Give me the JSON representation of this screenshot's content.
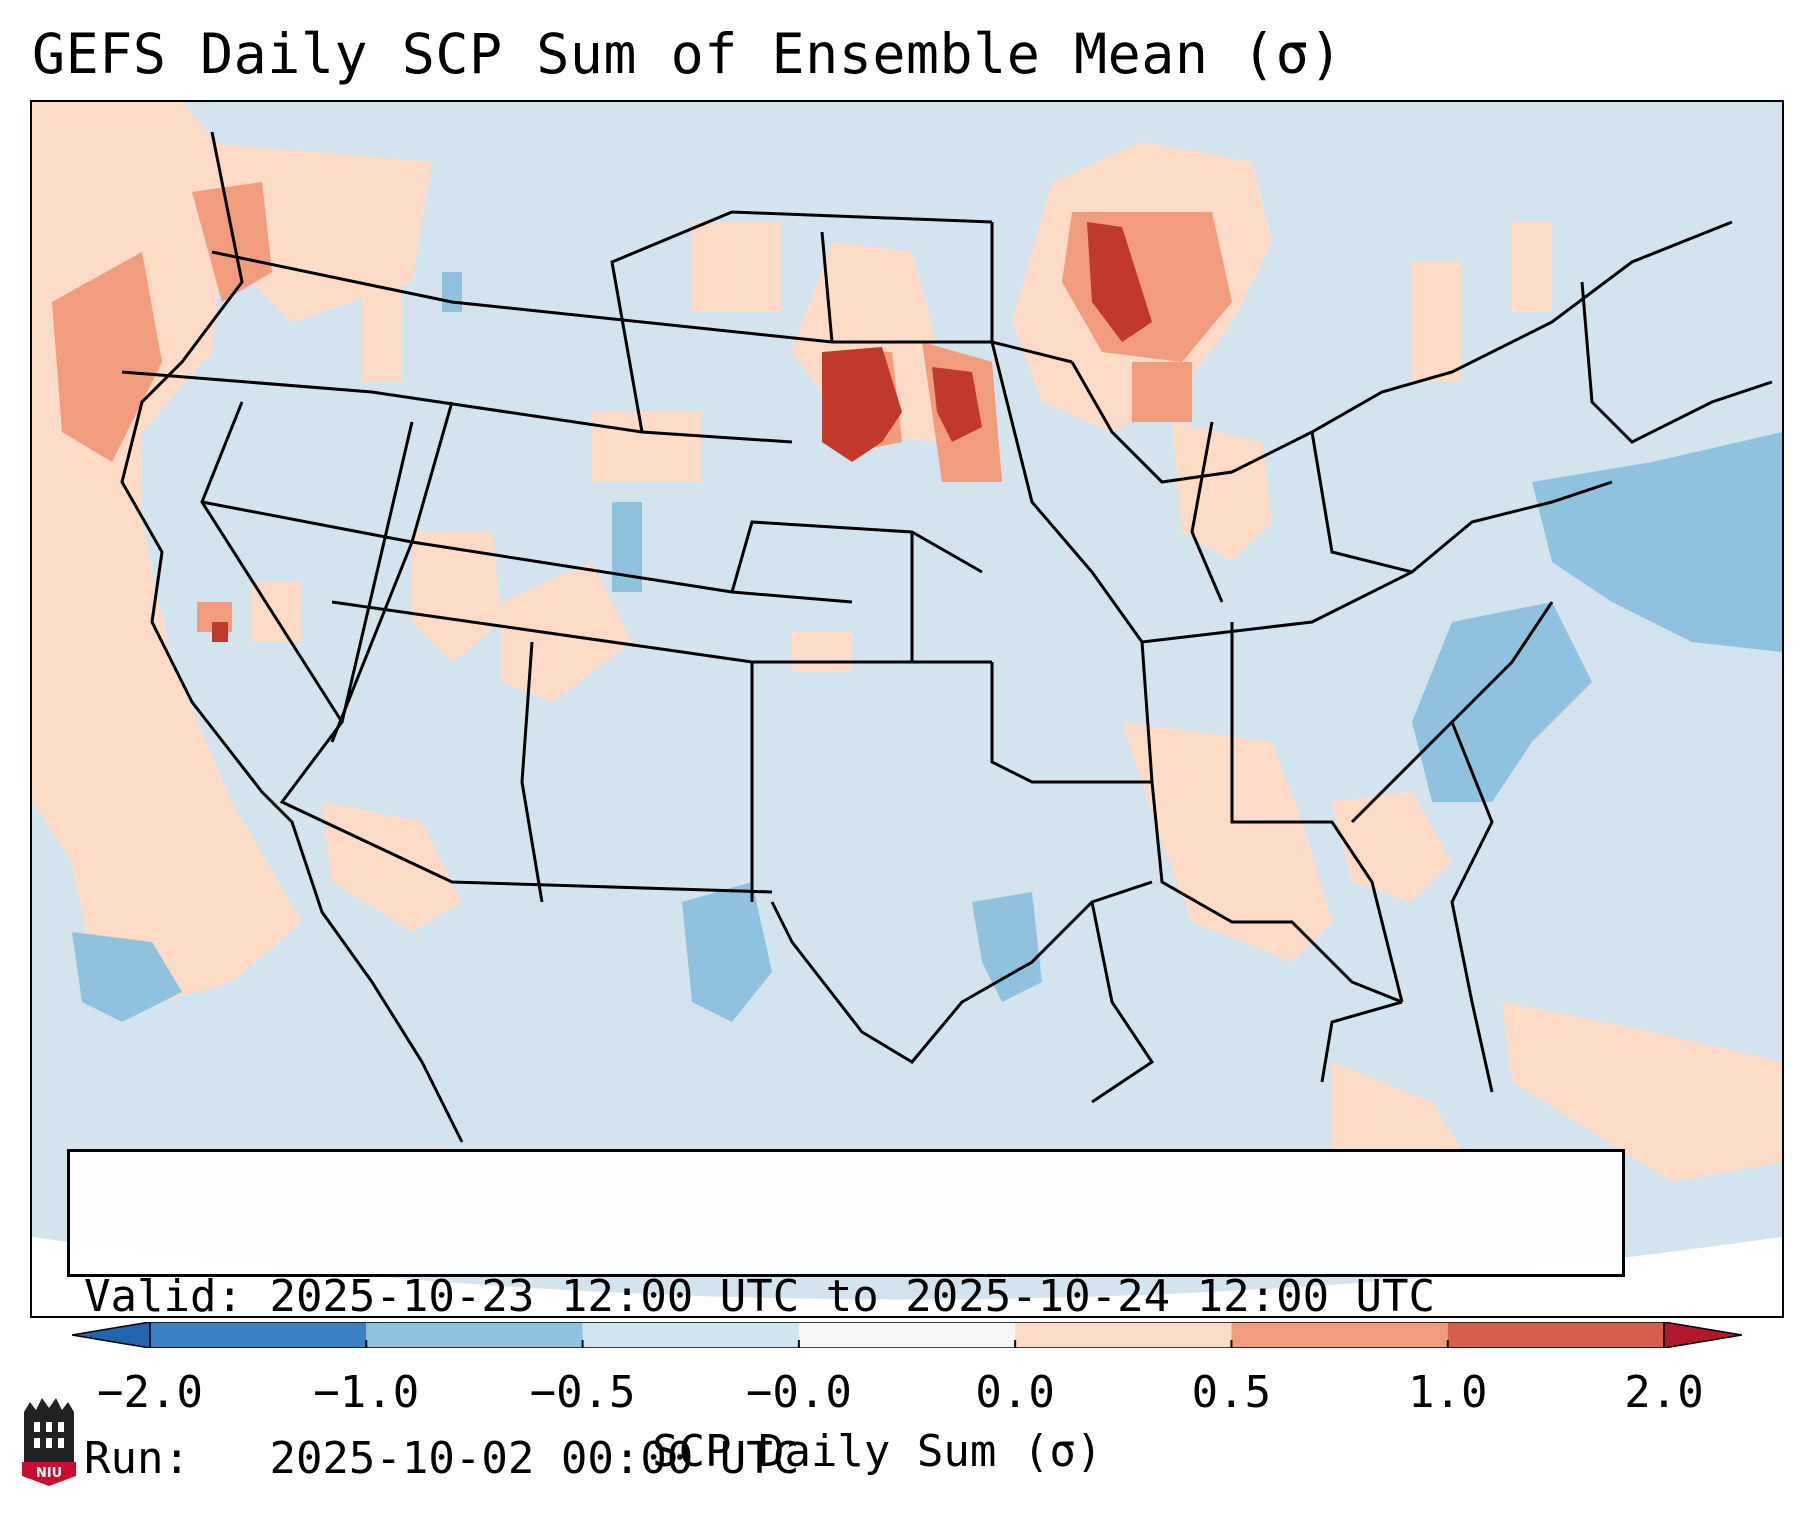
{
  "title": "GEFS Daily SCP Sum of Ensemble Mean (σ)",
  "info": {
    "valid_label": "Valid:",
    "valid_value": "2025-10-23 12:00 UTC to 2025-10-24 12:00 UTC",
    "run_label": "Run:",
    "run_value": "2025-10-02 00:00 UTC"
  },
  "colorbar": {
    "label": "SCP Daily Sum (σ)",
    "ticks": [
      "−2.0",
      "−1.0",
      "−0.5",
      "−0.0",
      "0.0",
      "0.5",
      "1.0",
      "2.0"
    ],
    "bins": [
      {
        "range": "-2.0 to -1.0",
        "color": "#3b82c4"
      },
      {
        "range": "-1.0 to -0.5",
        "color": "#8fc2de"
      },
      {
        "range": "-0.5 to -0.0",
        "color": "#d1e5f0"
      },
      {
        "range": "-0.0 to 0.0",
        "color": "#f7f7f7"
      },
      {
        "range": "0.0 to 0.5",
        "color": "#fddbc7"
      },
      {
        "range": "0.5 to 1.0",
        "color": "#f09c7d"
      },
      {
        "range": "1.0 to 2.0",
        "color": "#d6604d"
      }
    ],
    "under_color": "#2166ac",
    "over_color": "#b2182b"
  },
  "map": {
    "background_color": "#d1e5f0",
    "features": [
      {
        "name": "northern-plains-maximum",
        "level": "1.0 to 2.0"
      },
      {
        "name": "lake-superior-maximum",
        "level": "1.0 to 2.0"
      },
      {
        "name": "pacific-northwest-positive",
        "level": "0.0 to 0.5"
      },
      {
        "name": "western-atlantic-negative",
        "level": "-1.0 to -0.5"
      },
      {
        "name": "gulf-negative",
        "level": "-1.0 to -0.5"
      }
    ]
  },
  "logo": {
    "text": "NIU"
  }
}
